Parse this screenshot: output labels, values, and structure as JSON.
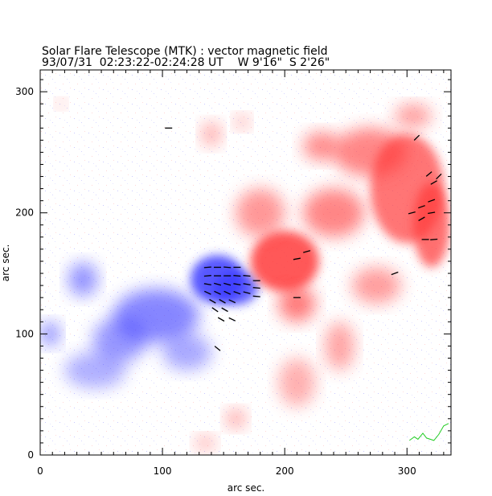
{
  "chart_data": {
    "type": "heatmap",
    "title": "Solar Flare Telescope (MTK) : vector magnetic field",
    "subtitle": "93/07/31  02:23:22-02:24:28 UT    W 9'16\"  S 2'26\"",
    "xlabel": "arc sec.",
    "ylabel": "arc sec.",
    "xlim": [
      0,
      336
    ],
    "ylim": [
      0,
      318
    ],
    "xticks": [
      0,
      100,
      200,
      300
    ],
    "yticks": [
      0,
      100,
      200,
      300
    ],
    "x_minor_step": 10,
    "y_minor_step": 10,
    "colors": {
      "positive_polarity": "#ff3b3b",
      "negative_polarity": "#3b3bff",
      "transverse_vectors": "#000000",
      "contour": "#22cc22"
    },
    "regions": [
      {
        "polarity": "negative",
        "x": 145,
        "y": 145,
        "rx": 22,
        "ry": 20,
        "strength": 1.0
      },
      {
        "polarity": "negative",
        "x": 160,
        "y": 138,
        "rx": 18,
        "ry": 14,
        "strength": 0.9
      },
      {
        "polarity": "negative",
        "x": 95,
        "y": 115,
        "rx": 35,
        "ry": 22,
        "strength": 0.6
      },
      {
        "polarity": "negative",
        "x": 65,
        "y": 95,
        "rx": 22,
        "ry": 18,
        "strength": 0.45
      },
      {
        "polarity": "negative",
        "x": 35,
        "y": 145,
        "rx": 12,
        "ry": 14,
        "strength": 0.5
      },
      {
        "polarity": "negative",
        "x": 8,
        "y": 100,
        "rx": 8,
        "ry": 10,
        "strength": 0.55
      },
      {
        "polarity": "negative",
        "x": 45,
        "y": 70,
        "rx": 25,
        "ry": 15,
        "strength": 0.25
      },
      {
        "polarity": "negative",
        "x": 120,
        "y": 85,
        "rx": 20,
        "ry": 15,
        "strength": 0.3
      },
      {
        "polarity": "positive",
        "x": 200,
        "y": 160,
        "rx": 28,
        "ry": 25,
        "strength": 1.0
      },
      {
        "polarity": "positive",
        "x": 210,
        "y": 125,
        "rx": 15,
        "ry": 15,
        "strength": 0.7
      },
      {
        "polarity": "positive",
        "x": 240,
        "y": 200,
        "rx": 25,
        "ry": 20,
        "strength": 0.6
      },
      {
        "polarity": "positive",
        "x": 300,
        "y": 220,
        "rx": 30,
        "ry": 45,
        "strength": 0.75
      },
      {
        "polarity": "positive",
        "x": 320,
        "y": 190,
        "rx": 15,
        "ry": 35,
        "strength": 0.8
      },
      {
        "polarity": "positive",
        "x": 270,
        "y": 250,
        "rx": 30,
        "ry": 20,
        "strength": 0.6
      },
      {
        "polarity": "positive",
        "x": 230,
        "y": 255,
        "rx": 15,
        "ry": 12,
        "strength": 0.55
      },
      {
        "polarity": "positive",
        "x": 305,
        "y": 280,
        "rx": 15,
        "ry": 10,
        "strength": 0.4
      },
      {
        "polarity": "positive",
        "x": 180,
        "y": 200,
        "rx": 20,
        "ry": 20,
        "strength": 0.45
      },
      {
        "polarity": "positive",
        "x": 275,
        "y": 140,
        "rx": 20,
        "ry": 15,
        "strength": 0.4
      },
      {
        "polarity": "positive",
        "x": 245,
        "y": 90,
        "rx": 12,
        "ry": 20,
        "strength": 0.35
      },
      {
        "polarity": "positive",
        "x": 210,
        "y": 60,
        "rx": 15,
        "ry": 20,
        "strength": 0.25
      },
      {
        "polarity": "positive",
        "x": 160,
        "y": 30,
        "rx": 8,
        "ry": 8,
        "strength": 0.35
      },
      {
        "polarity": "positive",
        "x": 140,
        "y": 265,
        "rx": 8,
        "ry": 10,
        "strength": 0.3
      },
      {
        "polarity": "positive",
        "x": 165,
        "y": 275,
        "rx": 6,
        "ry": 6,
        "strength": 0.3
      },
      {
        "polarity": "positive",
        "x": 135,
        "y": 10,
        "rx": 8,
        "ry": 6,
        "strength": 0.3
      },
      {
        "polarity": "positive",
        "x": 17,
        "y": 290,
        "rx": 4,
        "ry": 4,
        "strength": 0.3
      }
    ],
    "vectors": [
      {
        "x": 137,
        "y": 155,
        "angle": 5
      },
      {
        "x": 145,
        "y": 155,
        "angle": 0
      },
      {
        "x": 153,
        "y": 155,
        "angle": -5
      },
      {
        "x": 161,
        "y": 155,
        "angle": 0
      },
      {
        "x": 137,
        "y": 148,
        "angle": 5
      },
      {
        "x": 145,
        "y": 148,
        "angle": 0
      },
      {
        "x": 153,
        "y": 148,
        "angle": 0
      },
      {
        "x": 161,
        "y": 148,
        "angle": -5
      },
      {
        "x": 169,
        "y": 148,
        "angle": -5
      },
      {
        "x": 177,
        "y": 144,
        "angle": 0
      },
      {
        "x": 137,
        "y": 141,
        "angle": -10
      },
      {
        "x": 145,
        "y": 141,
        "angle": -15
      },
      {
        "x": 153,
        "y": 141,
        "angle": -15
      },
      {
        "x": 161,
        "y": 141,
        "angle": -10
      },
      {
        "x": 169,
        "y": 141,
        "angle": -10
      },
      {
        "x": 177,
        "y": 138,
        "angle": -5
      },
      {
        "x": 137,
        "y": 134,
        "angle": -25
      },
      {
        "x": 145,
        "y": 134,
        "angle": -25
      },
      {
        "x": 153,
        "y": 134,
        "angle": -25
      },
      {
        "x": 161,
        "y": 134,
        "angle": -20
      },
      {
        "x": 169,
        "y": 134,
        "angle": -15
      },
      {
        "x": 177,
        "y": 131,
        "angle": -5
      },
      {
        "x": 141,
        "y": 127,
        "angle": -30
      },
      {
        "x": 149,
        "y": 127,
        "angle": -30
      },
      {
        "x": 157,
        "y": 127,
        "angle": -25
      },
      {
        "x": 143,
        "y": 120,
        "angle": -35
      },
      {
        "x": 151,
        "y": 120,
        "angle": -30
      },
      {
        "x": 157,
        "y": 112,
        "angle": -25
      },
      {
        "x": 148,
        "y": 112,
        "angle": -30
      },
      {
        "x": 145,
        "y": 88,
        "angle": -40
      },
      {
        "x": 210,
        "y": 162,
        "angle": 10
      },
      {
        "x": 218,
        "y": 168,
        "angle": 15
      },
      {
        "x": 210,
        "y": 130,
        "angle": 0
      },
      {
        "x": 290,
        "y": 150,
        "angle": 20
      },
      {
        "x": 304,
        "y": 200,
        "angle": 15
      },
      {
        "x": 312,
        "y": 205,
        "angle": 20
      },
      {
        "x": 312,
        "y": 195,
        "angle": 30
      },
      {
        "x": 320,
        "y": 200,
        "angle": 10
      },
      {
        "x": 320,
        "y": 210,
        "angle": 20
      },
      {
        "x": 322,
        "y": 225,
        "angle": 30
      },
      {
        "x": 318,
        "y": 232,
        "angle": 40
      },
      {
        "x": 326,
        "y": 230,
        "angle": 45
      },
      {
        "x": 308,
        "y": 262,
        "angle": 45
      },
      {
        "x": 315,
        "y": 178,
        "angle": 0
      },
      {
        "x": 322,
        "y": 178,
        "angle": 5
      },
      {
        "x": 105,
        "y": 270,
        "angle": 0
      }
    ],
    "contour_points": [
      [
        302,
        12
      ],
      [
        306,
        15
      ],
      [
        309,
        13
      ],
      [
        313,
        18
      ],
      [
        316,
        14
      ],
      [
        322,
        12
      ],
      [
        326,
        17
      ],
      [
        330,
        24
      ],
      [
        334,
        26
      ]
    ]
  }
}
